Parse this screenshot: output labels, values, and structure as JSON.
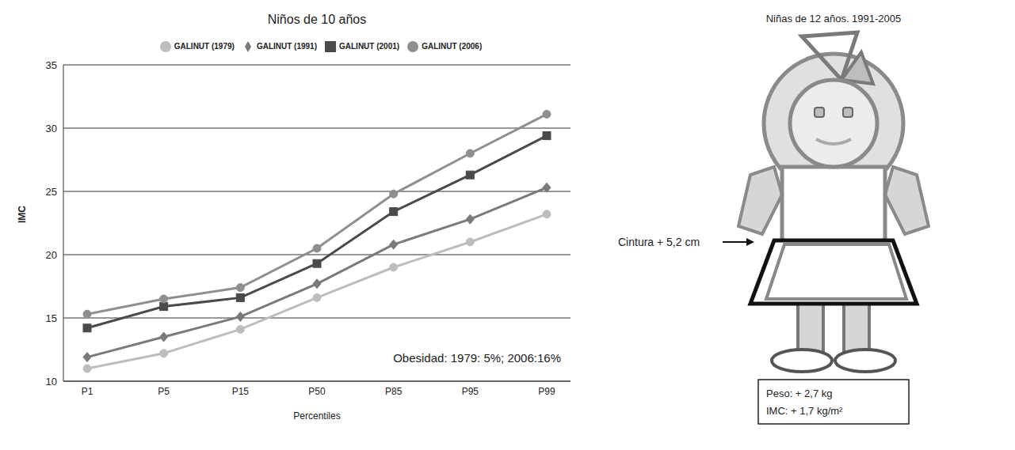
{
  "chart_data": {
    "type": "line",
    "title": "Niños de 10 años",
    "x_label": "Percentiles",
    "y_label": "IMC",
    "categories": [
      "P1",
      "P5",
      "P15",
      "P50",
      "P85",
      "P95",
      "P99"
    ],
    "series": [
      {
        "name": "GALINUT (1979)",
        "color": "#bdbdbd",
        "marker": "circle",
        "values": [
          11.0,
          12.2,
          14.1,
          16.6,
          19.0,
          21.0,
          23.2
        ]
      },
      {
        "name": "GALINUT (1991)",
        "color": "#7a7a7a",
        "marker": "diamond",
        "values": [
          11.9,
          13.5,
          15.1,
          17.7,
          20.8,
          22.8,
          25.3
        ]
      },
      {
        "name": "GALINUT (2001)",
        "color": "#4a4a4a",
        "marker": "square",
        "values": [
          14.2,
          15.9,
          16.6,
          19.3,
          23.4,
          26.3,
          29.4
        ]
      },
      {
        "name": "GALINUT (2006)",
        "color": "#8f8f8f",
        "marker": "circle",
        "values": [
          15.3,
          16.5,
          17.4,
          20.5,
          24.8,
          28.0,
          31.1
        ]
      }
    ],
    "ylim": [
      10,
      35
    ],
    "yticks": [
      10,
      15,
      20,
      25,
      30,
      35
    ],
    "grid": true,
    "legend": "top",
    "annotation": "Obesidad: 1979: 5%; 2006:16%"
  },
  "illustration": {
    "title": "Niñas de 12 años. 1991-2005",
    "waist_label": "Cintura + 5,2 cm",
    "weight_label": "Peso: + 2,7 kg",
    "bmi_label": "IMC: + 1,7 kg/m²"
  }
}
